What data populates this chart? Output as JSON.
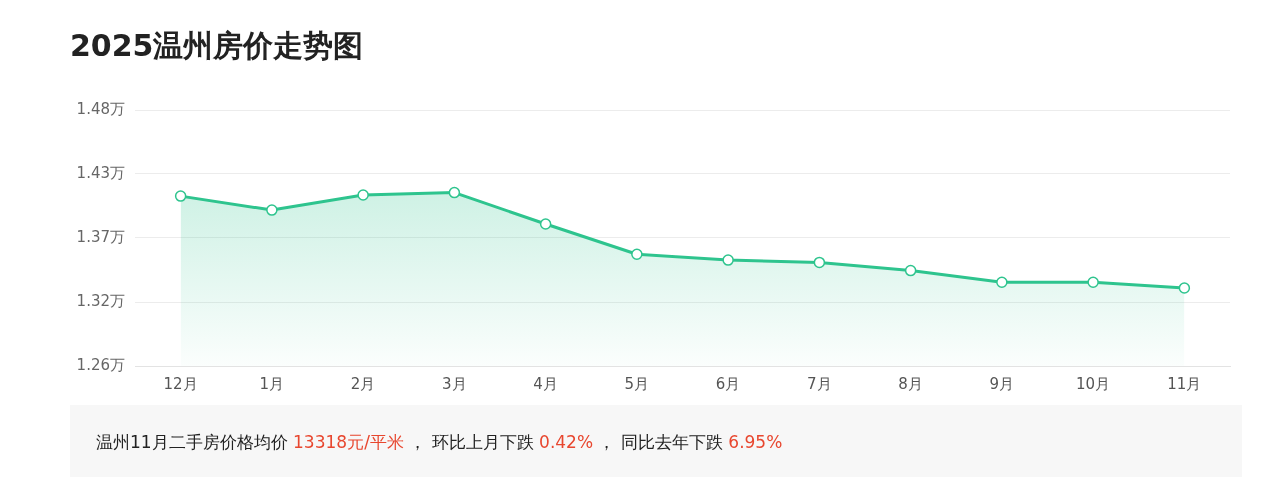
{
  "chart_data": {
    "type": "area",
    "title": "2025温州房价走势图",
    "categories": [
      "12月",
      "1月",
      "2月",
      "3月",
      "4月",
      "5月",
      "6月",
      "7月",
      "8月",
      "9月",
      "10月",
      "11月"
    ],
    "series": [
      {
        "color": "#2ec48e",
        "values": [
          1.406,
          1.394,
          1.407,
          1.409,
          1.382,
          1.356,
          1.351,
          1.349,
          1.342,
          1.332,
          1.332,
          1.327
        ]
      }
    ],
    "ylim": [
      1.26,
      1.48
    ],
    "yticks": [
      {
        "value": 1.26,
        "label": "1.26万"
      },
      {
        "value": 1.315,
        "label": "1.32万"
      },
      {
        "value": 1.37,
        "label": "1.37万"
      },
      {
        "value": 1.425,
        "label": "1.43万"
      },
      {
        "value": 1.48,
        "label": "1.48万"
      }
    ],
    "grid": "y",
    "marker": "circle",
    "line_style": "solid",
    "legend": false,
    "annotations": [
      "温州11月二手房价格均价 ",
      "13318元/平米",
      " ， 环比上月下跌 ",
      "0.42%",
      " ， 同比去年下跌 ",
      "6.95%"
    ]
  }
}
